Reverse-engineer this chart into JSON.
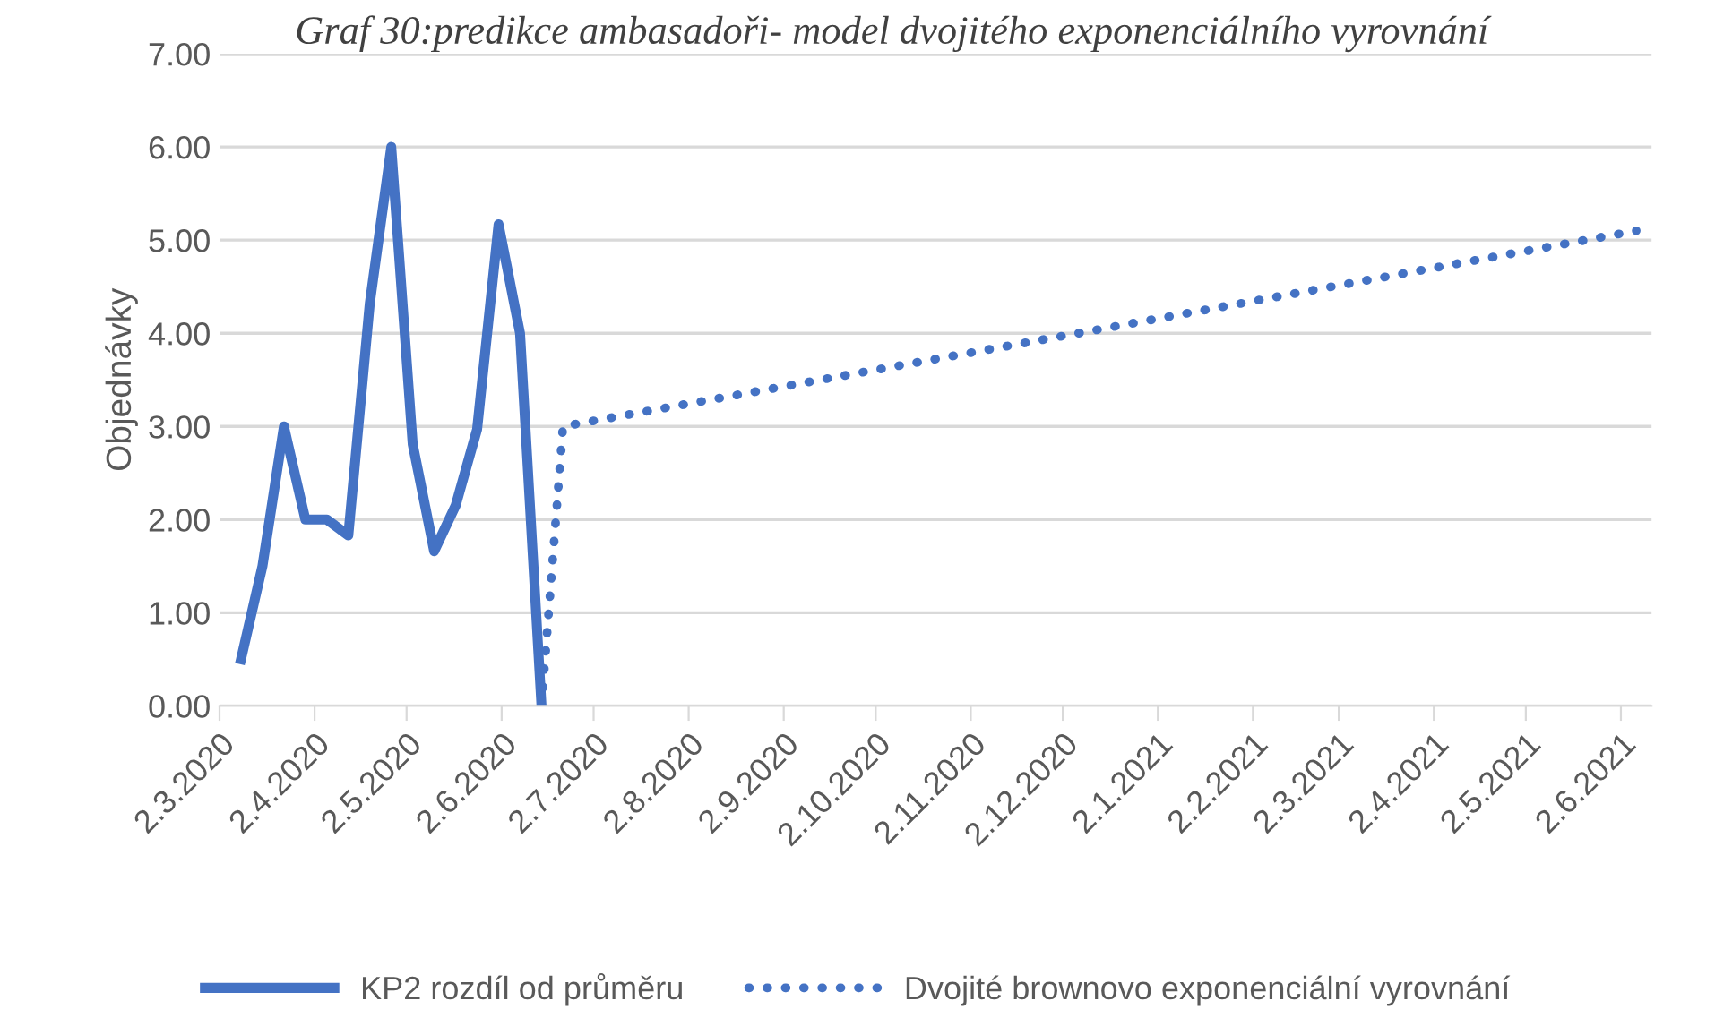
{
  "chart_data": {
    "type": "line",
    "annotations": [
      "Graf 30:predikce ambasadoři- model dvojitého exponenciálního vyrovnání"
    ],
    "ylabel": "Objednávky",
    "series": [
      {
        "name": "KP2 rozdíl od průměru",
        "color": "#4472c4",
        "line_style": "solid",
        "x": [
          "2020-03-09",
          "2020-03-16",
          "2020-03-23",
          "2020-03-30",
          "2020-04-06",
          "2020-04-13",
          "2020-04-20",
          "2020-04-27",
          "2020-05-04",
          "2020-05-11",
          "2020-05-18",
          "2020-05-25",
          "2020-06-01",
          "2020-06-08",
          "2020-06-15"
        ],
        "values": [
          0.5,
          1.5,
          3.0,
          2.0,
          2.0,
          1.83,
          4.32,
          6.0,
          2.81,
          1.66,
          2.15,
          2.97,
          5.17,
          4.0,
          0
        ]
      },
      {
        "name": "Dvojité brownovo exponenciální vyrovnání",
        "color": "#4472c4",
        "line_style": "dotted",
        "x": [
          "2020-06-15",
          "2020-06-22",
          "2020-12-07",
          "2021-06-07"
        ],
        "values": [
          0,
          3.0,
          4.0,
          5.1
        ]
      }
    ],
    "xlim": [
      "2020-03-02",
      "2021-06-12"
    ],
    "xticks": [
      {
        "value": "2020-03-02",
        "label": "2.3.2020"
      },
      {
        "value": "2020-04-02",
        "label": "2.4.2020"
      },
      {
        "value": "2020-05-02",
        "label": "2.5.2020"
      },
      {
        "value": "2020-06-02",
        "label": "2.6.2020"
      },
      {
        "value": "2020-07-02",
        "label": "2.7.2020"
      },
      {
        "value": "2020-08-02",
        "label": "2.8.2020"
      },
      {
        "value": "2020-09-02",
        "label": "2.9.2020"
      },
      {
        "value": "2020-10-02",
        "label": "2.10.2020"
      },
      {
        "value": "2020-11-02",
        "label": "2.11.2020"
      },
      {
        "value": "2020-12-02",
        "label": "2.12.2020"
      },
      {
        "value": "2021-01-02",
        "label": "2.1.2021"
      },
      {
        "value": "2021-02-02",
        "label": "2.2.2021"
      },
      {
        "value": "2021-03-02",
        "label": "2.3.2021"
      },
      {
        "value": "2021-04-02",
        "label": "2.4.2021"
      },
      {
        "value": "2021-05-02",
        "label": "2.5.2021"
      },
      {
        "value": "2021-06-02",
        "label": "2.6.2021"
      }
    ],
    "ylim": [
      0,
      7
    ],
    "yticks": [
      {
        "value": 0,
        "label": "0.00"
      },
      {
        "value": 1,
        "label": "1.00"
      },
      {
        "value": 2,
        "label": "2.00"
      },
      {
        "value": 3,
        "label": "3.00"
      },
      {
        "value": 4,
        "label": "4.00"
      },
      {
        "value": 5,
        "label": "5.00"
      },
      {
        "value": 6,
        "label": "6.00"
      },
      {
        "value": 7,
        "label": "7.00"
      }
    ],
    "grid": "y",
    "legend": "bottom",
    "marker": "none"
  }
}
